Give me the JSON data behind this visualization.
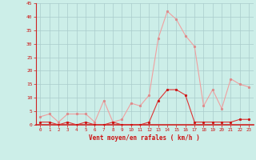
{
  "hours": [
    0,
    1,
    2,
    3,
    4,
    5,
    6,
    7,
    8,
    9,
    10,
    11,
    12,
    13,
    14,
    15,
    16,
    17,
    18,
    19,
    20,
    21,
    22,
    23
  ],
  "wind_avg": [
    1,
    1,
    0,
    1,
    0,
    1,
    0,
    0,
    1,
    0,
    0,
    0,
    1,
    9,
    13,
    13,
    11,
    1,
    1,
    1,
    1,
    1,
    2,
    2
  ],
  "wind_gust": [
    3,
    4,
    1,
    4,
    4,
    4,
    1,
    9,
    1,
    2,
    8,
    7,
    11,
    32,
    42,
    39,
    33,
    29,
    7,
    13,
    6,
    17,
    15,
    14
  ],
  "line_color_avg": "#dd3333",
  "line_color_gust": "#f0a0a0",
  "marker_color_avg": "#cc1111",
  "marker_color_gust": "#dd8888",
  "bg_color": "#cceee8",
  "grid_color": "#aacccc",
  "axis_color": "#cc2222",
  "xlabel": "Vent moyen/en rafales ( km/h )",
  "xlabel_color": "#cc1111",
  "tick_color": "#cc1111",
  "ylim": [
    0,
    45
  ],
  "yticks": [
    0,
    5,
    10,
    15,
    20,
    25,
    30,
    35,
    40,
    45
  ],
  "xlim": [
    -0.5,
    23.5
  ]
}
